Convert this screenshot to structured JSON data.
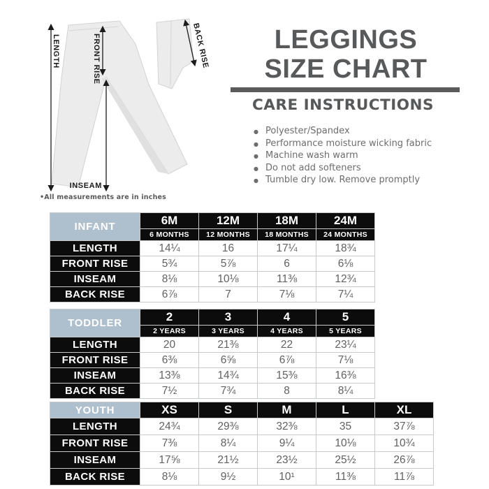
{
  "diagram": {
    "measurement_labels": {
      "length": "LENGTH",
      "front_rise": "FRONT RISE",
      "inseam": "INSEAM",
      "back_rise": "BACK RISE"
    },
    "note": "•All measurements are in inches"
  },
  "header": {
    "title_line1": "LEGGINGS",
    "title_line2": "SIZE CHART",
    "care_title": "CARE INSTRUCTIONS",
    "care_items": [
      "Polyester/Spandex",
      "Performance moisture wicking fabric",
      "Machine wash warm",
      "Do not add softeners",
      "Tumble dry low. Remove promptly"
    ]
  },
  "colors": {
    "title_gray": "#58595b",
    "body_text_gray": "#6c6d6f",
    "value_gray": "#606163",
    "header_blue": "#aebfce",
    "header_black": "#0c0c0c",
    "grid_line": "#c6cacd"
  },
  "size_tables": [
    {
      "group": "INFANT",
      "columns": [
        "6M",
        "12M",
        "18M",
        "24M"
      ],
      "subcolumns": [
        "6 MONTHS",
        "12 MONTHS",
        "18 MONTHS",
        "24 MONTHS"
      ],
      "rows": [
        {
          "label": "LENGTH",
          "values": [
            "14¼",
            "16",
            "17¼",
            "18¾"
          ]
        },
        {
          "label": "FRONT RISE",
          "values": [
            "5¾",
            "5⅞",
            "6",
            "6⅛"
          ]
        },
        {
          "label": "INSEAM",
          "values": [
            "8⅛",
            "10⅛",
            "11⅜",
            "12¾"
          ]
        },
        {
          "label": "BACK RISE",
          "values": [
            "6⅞",
            "7",
            "7⅛",
            "7¼"
          ]
        }
      ]
    },
    {
      "group": "TODDLER",
      "columns": [
        "2",
        "3",
        "4",
        "5"
      ],
      "subcolumns": [
        "2 YEARS",
        "3 YEARS",
        "4 YEARS",
        "5 YEARS"
      ],
      "rows": [
        {
          "label": "LENGTH",
          "values": [
            "20",
            "21⅜",
            "22",
            "23¼"
          ]
        },
        {
          "label": "FRONT RISE",
          "values": [
            "6⅜",
            "6⅝",
            "6⅞",
            "7⅛"
          ]
        },
        {
          "label": "INSEAM",
          "values": [
            "13⅜",
            "14¾",
            "15⅜",
            "16⅜"
          ]
        },
        {
          "label": "BACK RISE",
          "values": [
            "7½",
            "7¾",
            "8",
            "8¼"
          ]
        }
      ]
    },
    {
      "group": "YOUTH",
      "columns": [
        "XS",
        "S",
        "M",
        "L",
        "XL"
      ],
      "subcolumns": null,
      "rows": [
        {
          "label": "LENGTH",
          "values": [
            "24¾",
            "29⅜",
            "32⅜",
            "35",
            "37⅞"
          ]
        },
        {
          "label": "FRONT RISE",
          "values": [
            "7⅜",
            "8¼",
            "9¼",
            "10⅛",
            "10¾"
          ]
        },
        {
          "label": "INSEAM",
          "values": [
            "17⅝",
            "21½",
            "23½",
            "25½",
            "26⅞"
          ]
        },
        {
          "label": "BACK RISE",
          "values": [
            "8⅛",
            "9½",
            "10¹",
            "11⅜",
            "11⅞"
          ]
        }
      ]
    }
  ]
}
